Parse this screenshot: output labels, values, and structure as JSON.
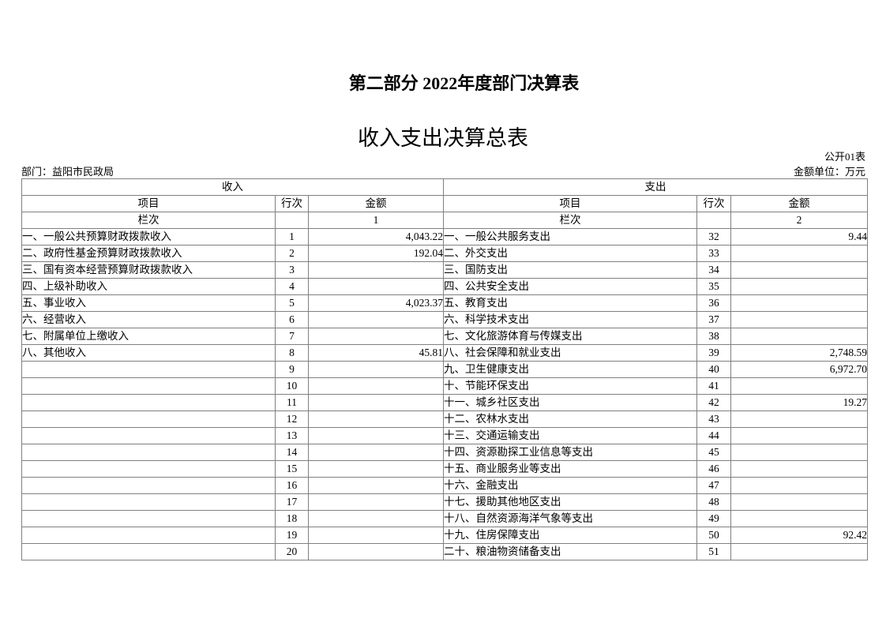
{
  "title": "第二部分 2022年度部门决算表",
  "subtitle": "收入支出决算总表",
  "table_code": "公开01表",
  "department": "部门：益阳市民政局",
  "unit": "金额单位：万元",
  "headers": {
    "income": "收入",
    "expense": "支出",
    "item": "项目",
    "row_no": "行次",
    "amount": "金额",
    "column_label": "栏次",
    "income_col": "1",
    "expense_col": "2"
  },
  "rows": [
    {
      "in_item": "一、一般公共预算财政拨款收入",
      "in_no": "1",
      "in_amt": "4,043.22",
      "ex_item": "一、一般公共服务支出",
      "ex_no": "32",
      "ex_amt": "9.44"
    },
    {
      "in_item": "二、政府性基金预算财政拨款收入",
      "in_no": "2",
      "in_amt": "192.04",
      "ex_item": "二、外交支出",
      "ex_no": "33",
      "ex_amt": ""
    },
    {
      "in_item": "三、国有资本经营预算财政拨款收入",
      "in_no": "3",
      "in_amt": "",
      "ex_item": "三、国防支出",
      "ex_no": "34",
      "ex_amt": ""
    },
    {
      "in_item": "四、上级补助收入",
      "in_no": "4",
      "in_amt": "",
      "ex_item": "四、公共安全支出",
      "ex_no": "35",
      "ex_amt": ""
    },
    {
      "in_item": "五、事业收入",
      "in_no": "5",
      "in_amt": "4,023.37",
      "ex_item": "五、教育支出",
      "ex_no": "36",
      "ex_amt": ""
    },
    {
      "in_item": "六、经营收入",
      "in_no": "6",
      "in_amt": "",
      "ex_item": "六、科学技术支出",
      "ex_no": "37",
      "ex_amt": ""
    },
    {
      "in_item": "七、附属单位上缴收入",
      "in_no": "7",
      "in_amt": "",
      "ex_item": "七、文化旅游体育与传媒支出",
      "ex_no": "38",
      "ex_amt": ""
    },
    {
      "in_item": "八、其他收入",
      "in_no": "8",
      "in_amt": "45.81",
      "ex_item": "八、社会保障和就业支出",
      "ex_no": "39",
      "ex_amt": "2,748.59"
    },
    {
      "in_item": "",
      "in_no": "9",
      "in_amt": "",
      "ex_item": "九、卫生健康支出",
      "ex_no": "40",
      "ex_amt": "6,972.70"
    },
    {
      "in_item": "",
      "in_no": "10",
      "in_amt": "",
      "ex_item": "十、节能环保支出",
      "ex_no": "41",
      "ex_amt": ""
    },
    {
      "in_item": "",
      "in_no": "11",
      "in_amt": "",
      "ex_item": "十一、城乡社区支出",
      "ex_no": "42",
      "ex_amt": "19.27"
    },
    {
      "in_item": "",
      "in_no": "12",
      "in_amt": "",
      "ex_item": "十二、农林水支出",
      "ex_no": "43",
      "ex_amt": ""
    },
    {
      "in_item": "",
      "in_no": "13",
      "in_amt": "",
      "ex_item": "十三、交通运输支出",
      "ex_no": "44",
      "ex_amt": ""
    },
    {
      "in_item": "",
      "in_no": "14",
      "in_amt": "",
      "ex_item": "十四、资源勘探工业信息等支出",
      "ex_no": "45",
      "ex_amt": ""
    },
    {
      "in_item": "",
      "in_no": "15",
      "in_amt": "",
      "ex_item": "十五、商业服务业等支出",
      "ex_no": "46",
      "ex_amt": ""
    },
    {
      "in_item": "",
      "in_no": "16",
      "in_amt": "",
      "ex_item": "十六、金融支出",
      "ex_no": "47",
      "ex_amt": ""
    },
    {
      "in_item": "",
      "in_no": "17",
      "in_amt": "",
      "ex_item": "十七、援助其他地区支出",
      "ex_no": "48",
      "ex_amt": ""
    },
    {
      "in_item": "",
      "in_no": "18",
      "in_amt": "",
      "ex_item": "十八、自然资源海洋气象等支出",
      "ex_no": "49",
      "ex_amt": ""
    },
    {
      "in_item": "",
      "in_no": "19",
      "in_amt": "",
      "ex_item": "十九、住房保障支出",
      "ex_no": "50",
      "ex_amt": "92.42"
    },
    {
      "in_item": "",
      "in_no": "20",
      "in_amt": "",
      "ex_item": "二十、粮油物资储备支出",
      "ex_no": "51",
      "ex_amt": ""
    }
  ]
}
